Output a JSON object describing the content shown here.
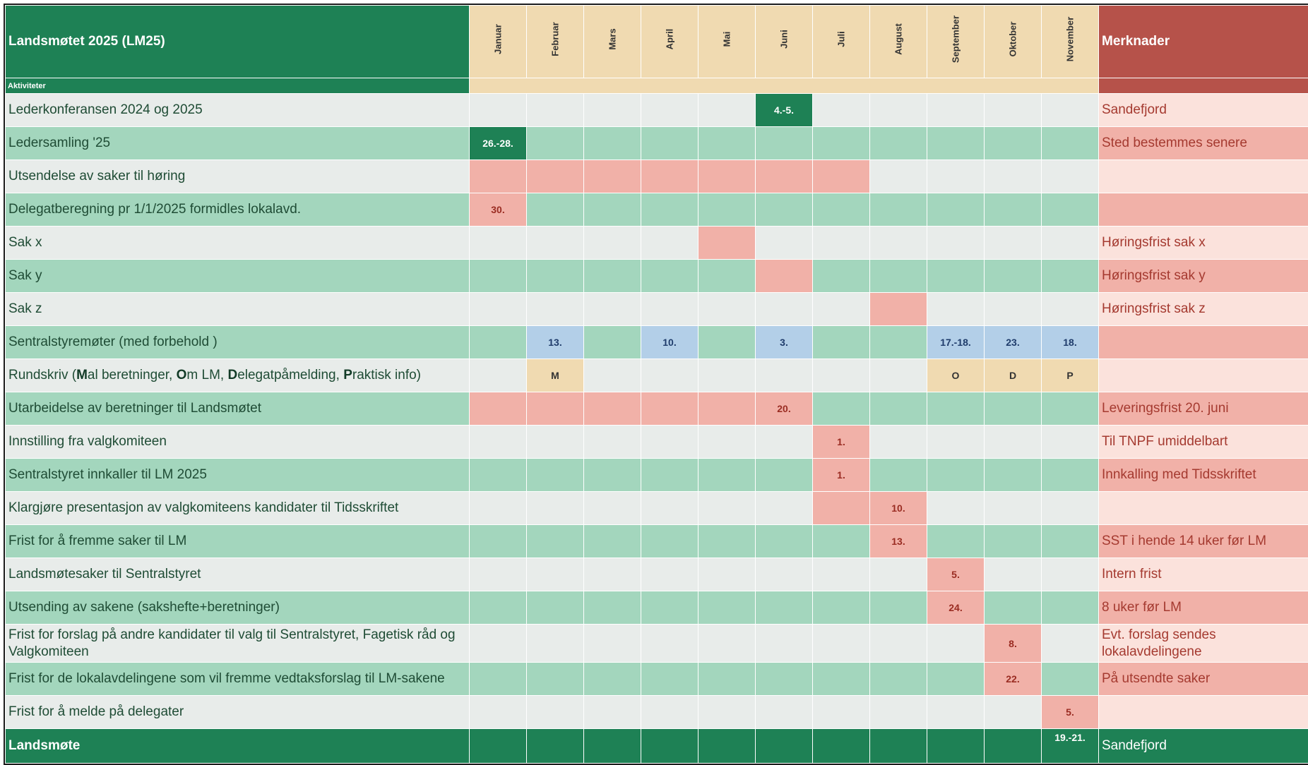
{
  "title": "Landsmøtet 2025 (LM25)",
  "subheader": "Aktiviteter",
  "notes_header": "Merknader",
  "months": [
    "Januar",
    "Februar",
    "Mars",
    "April",
    "Mai",
    "Juni",
    "Juli",
    "August",
    "September",
    "Oktober",
    "November"
  ],
  "rows": [
    {
      "activity": "Lederkonferansen 2024 og 2025",
      "note": "Sandefjord"
    },
    {
      "activity": "Ledersamling '25",
      "note": "Sted bestemmes senere"
    },
    {
      "activity": "Utsendelse av saker til høring",
      "note": ""
    },
    {
      "activity": "Delegatberegning  pr 1/1/2025 formidles lokalavd.",
      "note": ""
    },
    {
      "activity": "Sak x",
      "note": "Høringsfrist sak x"
    },
    {
      "activity": "Sak y",
      "note": "Høringsfrist sak y"
    },
    {
      "activity": "Sak z",
      "note": "Høringsfrist sak z"
    },
    {
      "activity": "Sentralstyremøter (med forbehold )",
      "note": ""
    },
    {
      "activity_parts": [
        "Rundskriv (",
        "M",
        "al beretninger, ",
        "O",
        "m LM, ",
        "D",
        "elegatpåmelding, ",
        "P",
        "raktisk info)"
      ],
      "note": ""
    },
    {
      "activity": "Utarbeidelse av beretninger til Landsmøtet",
      "note": "Leveringsfrist 20. juni"
    },
    {
      "activity": "Innstilling fra valgkomiteen",
      "note": "Til TNPF umiddelbart"
    },
    {
      "activity": "Sentralstyret innkaller til LM 2025",
      "note": "Innkalling med Tidsskriftet"
    },
    {
      "activity": "Klargjøre presentasjon av valgkomiteens kandidater til Tidsskriftet",
      "note": ""
    },
    {
      "activity": "Frist for å fremme saker til LM",
      "note": "SST i hende 14 uker før LM"
    },
    {
      "activity": "Landsmøtesaker til Sentralstyret",
      "note": "Intern frist"
    },
    {
      "activity": "Utsending av sakene (sakshefte+beretninger)",
      "note": "8 uker før LM"
    },
    {
      "activity": "Frist for forslag på andre kandidater til valg til Sentralstyret, Fagetisk råd og Valgkomiteen",
      "note": "Evt. forslag sendes lokalavdelingene"
    },
    {
      "activity": "Frist for de lokalavdelingene som vil fremme vedtaksforslag til LM-sakene",
      "note": "På utsendte saker"
    },
    {
      "activity": "Frist for å melde på delegater",
      "note": ""
    }
  ],
  "cells": {
    "r0_m5": "4.-5.",
    "r1_m0": "26.-28.",
    "r3_m0": "30.",
    "r7_m1": "13.",
    "r7_m3": "10.",
    "r7_m5": "3.",
    "r7_m8": "17.-18.",
    "r7_m9": "23.",
    "r7_m10": "18.",
    "r8_m1": "M",
    "r8_m8": "O",
    "r8_m9": "D",
    "r8_m10": "P",
    "r9_m5": "20.",
    "r10_m6": "1.",
    "r11_m6": "1.",
    "r12_m7": "10.",
    "r13_m7": "13.",
    "r14_m8": "5.",
    "r15_m8": "24.",
    "r16_m9": "8.",
    "r17_m9": "22.",
    "r18_m10": "5."
  },
  "footer": {
    "activity": "Landsmøte",
    "date": "19.-21.",
    "note": "Sandefjord"
  },
  "colors": {
    "green_dark": "#1e8155",
    "green_light": "#a3d6bd",
    "grey_light": "#e8ecea",
    "pink": "#f1b1a8",
    "pink_light": "#fbe2dc",
    "tan": "#f0dab1",
    "blue": "#b3cfe8",
    "red_header": "#b6524a"
  }
}
